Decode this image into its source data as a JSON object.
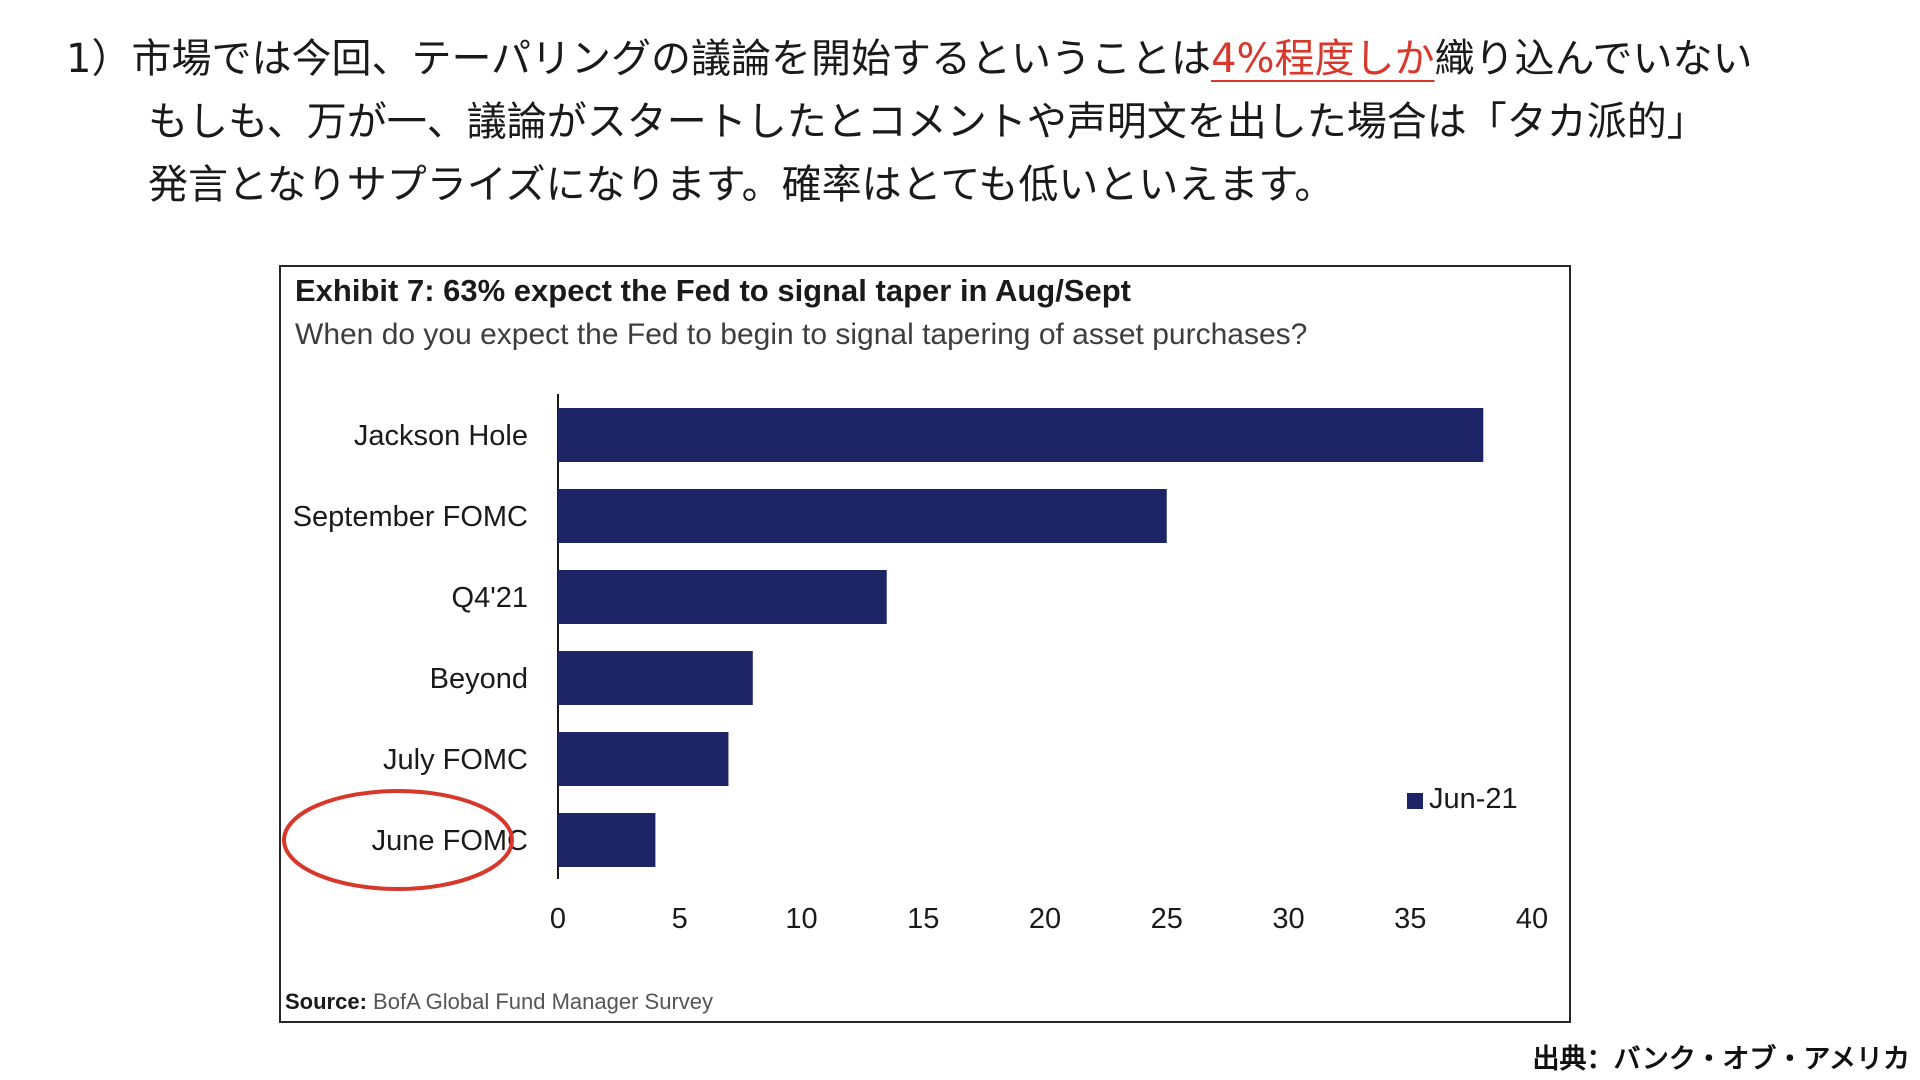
{
  "intro": {
    "line1_prefix": "1）市場では今回、テーパリングの議論を開始するということは",
    "line1_highlight": "4%程度しか",
    "line1_suffix": "織り込んでいない",
    "line2": "もしも、万が一、議論がスタートしたとコメントや声明文を出した場合は「タカ派的」",
    "line3": "発言となりサプライズになります。確率はとても低いといえます。"
  },
  "colors": {
    "bar": "#1e2566",
    "highlight": "#d8382b",
    "annotation_circle": "#d8382b"
  },
  "chart_data": {
    "type": "bar",
    "orientation": "horizontal",
    "title": "Exhibit 7: 63% expect the Fed to signal taper in Aug/Sept",
    "subtitle": "When do you expect the Fed to begin to signal tapering of asset purchases?",
    "categories": [
      "Jackson Hole",
      "September FOMC",
      "Q4'21",
      "Beyond",
      "July FOMC",
      "June FOMC"
    ],
    "series": [
      {
        "name": "Jun-21",
        "values": [
          38,
          25,
          13.5,
          8,
          7,
          4
        ]
      }
    ],
    "xlim": [
      0,
      40
    ],
    "xticks": [
      "0",
      "5",
      "10",
      "15",
      "20",
      "25",
      "30",
      "35",
      "40"
    ],
    "xlabel": "",
    "ylabel": "",
    "grid": false,
    "legend_position": "right",
    "annotation": {
      "type": "circle",
      "target": "June FOMC"
    },
    "source_label": "Source:",
    "source_text": "BofA Global Fund Manager Survey"
  },
  "credit": "出典：バンク・オブ・アメリカ"
}
